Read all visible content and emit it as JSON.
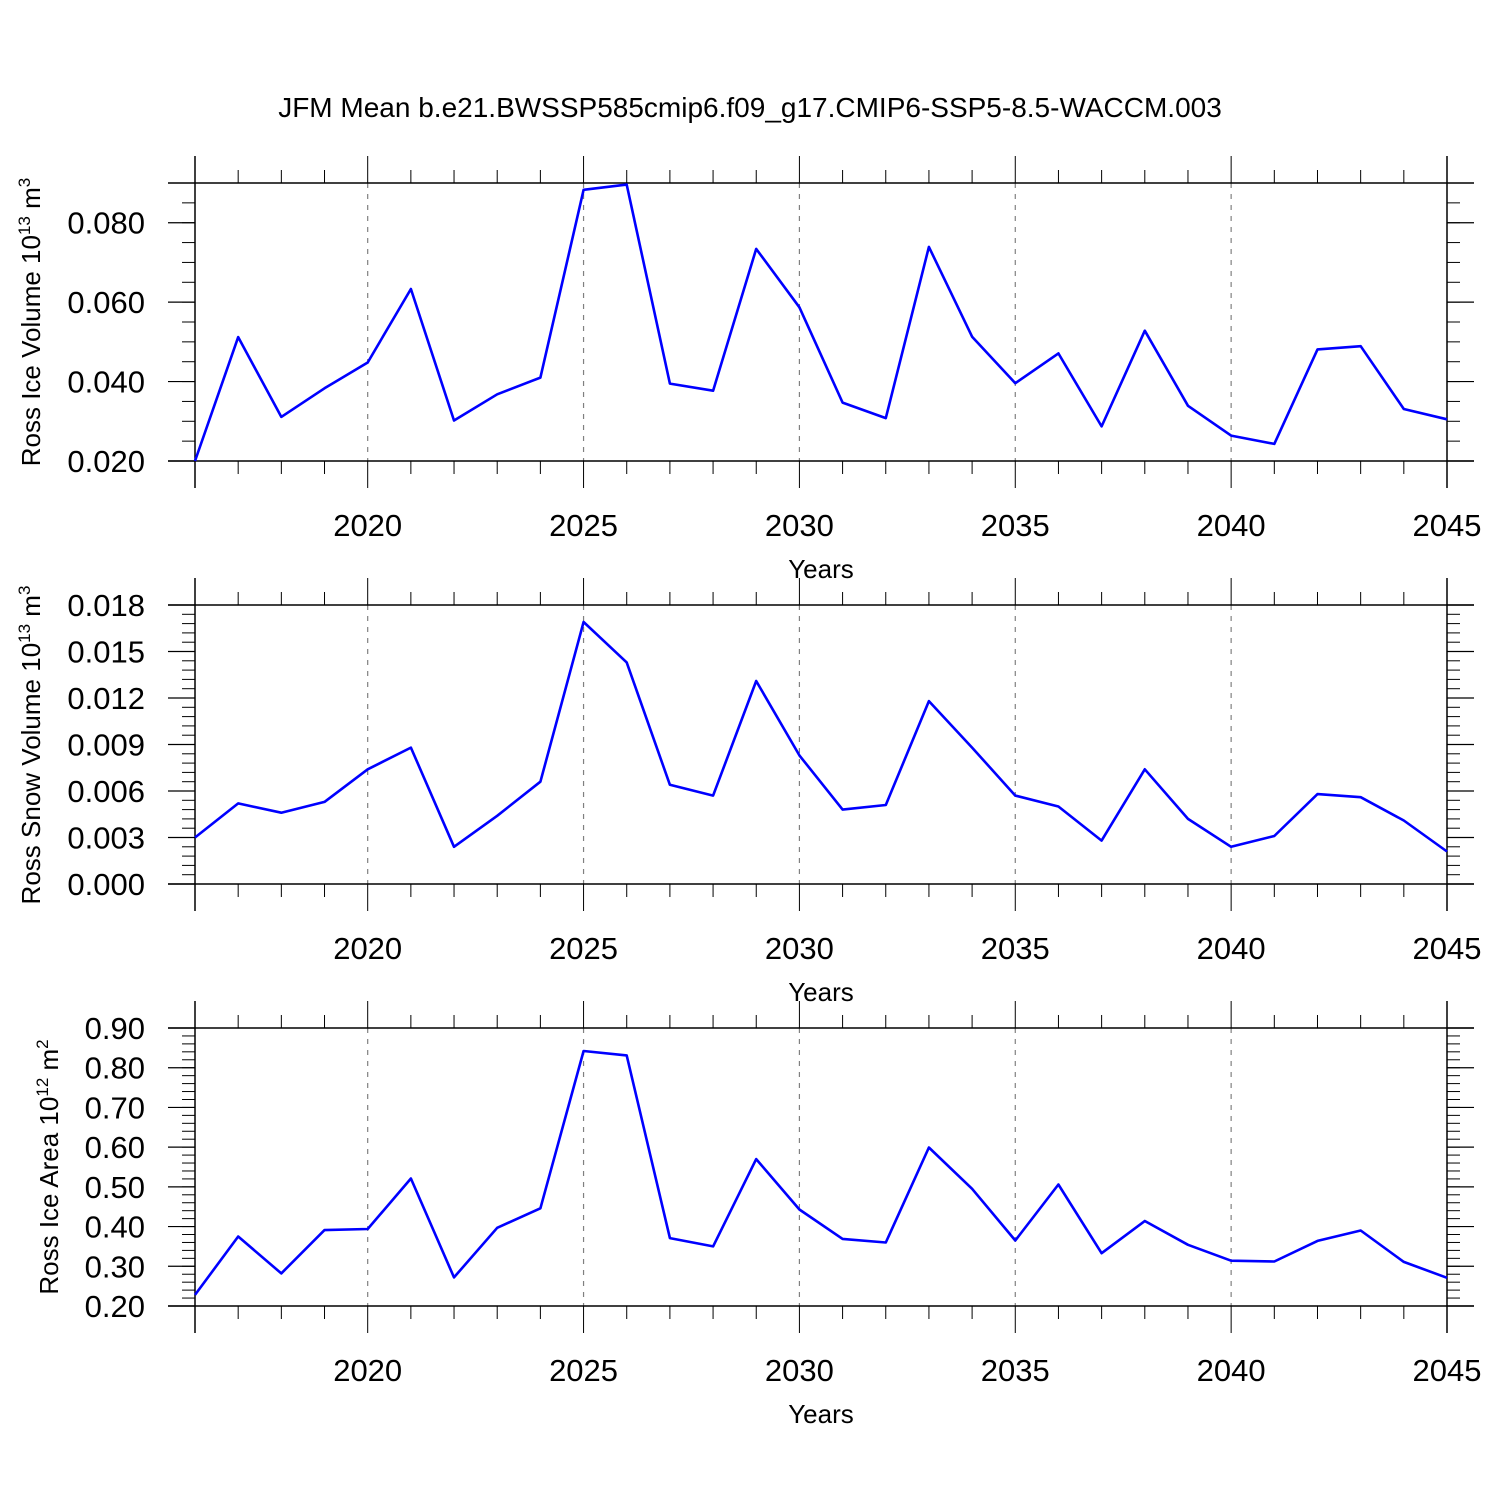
{
  "title": "JFM Mean b.e21.BWSSP585cmip6.f09_g17.CMIP6-SSP5-8.5-WACCM.003",
  "colors": {
    "line": "#0000ff",
    "axis": "#000000",
    "grid": "#808080"
  },
  "chart_data": [
    {
      "type": "line",
      "ylabel": "Ross Ice Volume",
      "ylabel_exp": "13",
      "ylabel_unit": "m",
      "ylabel_unit_exp": "3",
      "xlabel": "Years",
      "xlim": [
        2016,
        2045
      ],
      "ylim": [
        0.02,
        0.09
      ],
      "yticks": [
        0.02,
        0.04,
        0.06,
        0.08
      ],
      "ytick_labels": [
        "0.020",
        "0.040",
        "0.060",
        "0.080"
      ],
      "xticks": [
        2020,
        2025,
        2030,
        2035,
        2040,
        2045
      ],
      "xtick_labels": [
        "2020",
        "2025",
        "2030",
        "2035",
        "2040",
        "2045"
      ],
      "grid": "vertical dashed at major x ticks",
      "series": [
        {
          "x": [
            2016,
            2017,
            2018,
            2019,
            2020,
            2021,
            2022,
            2023,
            2024,
            2025,
            2026,
            2027,
            2028,
            2029,
            2030,
            2031,
            2032,
            2033,
            2034,
            2035,
            2036,
            2037,
            2038,
            2039,
            2040,
            2041,
            2042,
            2043,
            2044,
            2045
          ],
          "values": [
            0.02,
            0.0512,
            0.0311,
            0.0383,
            0.0448,
            0.0633,
            0.0302,
            0.0368,
            0.041,
            0.0883,
            0.0896,
            0.0395,
            0.0377,
            0.0734,
            0.0587,
            0.0347,
            0.0308,
            0.0739,
            0.0513,
            0.0396,
            0.0471,
            0.0287,
            0.0528,
            0.0339,
            0.0264,
            0.0243,
            0.0481,
            0.0489,
            0.0331,
            0.0305
          ]
        }
      ]
    },
    {
      "type": "line",
      "ylabel": "Ross Snow Volume",
      "ylabel_exp": "13",
      "ylabel_unit": "m",
      "ylabel_unit_exp": "3",
      "xlabel": "Years",
      "xlim": [
        2016,
        2045
      ],
      "ylim": [
        0.0,
        0.018
      ],
      "yticks": [
        0.0,
        0.003,
        0.006,
        0.009,
        0.012,
        0.015,
        0.018
      ],
      "ytick_labels": [
        "0.000",
        "0.003",
        "0.006",
        "0.009",
        "0.012",
        "0.015",
        "0.018"
      ],
      "xticks": [
        2020,
        2025,
        2030,
        2035,
        2040,
        2045
      ],
      "xtick_labels": [
        "2020",
        "2025",
        "2030",
        "2035",
        "2040",
        "2045"
      ],
      "grid": "vertical dashed at major x ticks",
      "series": [
        {
          "x": [
            2016,
            2017,
            2018,
            2019,
            2020,
            2021,
            2022,
            2023,
            2024,
            2025,
            2026,
            2027,
            2028,
            2029,
            2030,
            2031,
            2032,
            2033,
            2034,
            2035,
            2036,
            2037,
            2038,
            2039,
            2040,
            2041,
            2042,
            2043,
            2044,
            2045
          ],
          "values": [
            0.003,
            0.0052,
            0.0046,
            0.0053,
            0.0074,
            0.0088,
            0.0024,
            0.0044,
            0.0066,
            0.0169,
            0.0143,
            0.0064,
            0.0057,
            0.0131,
            0.0083,
            0.0048,
            0.0051,
            0.0118,
            0.0088,
            0.0057,
            0.005,
            0.0028,
            0.0074,
            0.0042,
            0.0024,
            0.0031,
            0.0058,
            0.0056,
            0.0041,
            0.0021
          ]
        }
      ]
    },
    {
      "type": "line",
      "ylabel": "Ross Ice Area",
      "ylabel_exp": "12",
      "ylabel_unit": "m",
      "ylabel_unit_exp": "2",
      "xlabel": "Years",
      "xlim": [
        2016,
        2045
      ],
      "ylim": [
        0.2,
        0.9
      ],
      "yticks": [
        0.2,
        0.3,
        0.4,
        0.5,
        0.6,
        0.7,
        0.8,
        0.9
      ],
      "ytick_labels": [
        "0.20",
        "0.30",
        "0.40",
        "0.50",
        "0.60",
        "0.70",
        "0.80",
        "0.90"
      ],
      "xticks": [
        2020,
        2025,
        2030,
        2035,
        2040,
        2045
      ],
      "xtick_labels": [
        "2020",
        "2025",
        "2030",
        "2035",
        "2040",
        "2045"
      ],
      "grid": "vertical dashed at major x ticks",
      "series": [
        {
          "x": [
            2016,
            2017,
            2018,
            2019,
            2020,
            2021,
            2022,
            2023,
            2024,
            2025,
            2026,
            2027,
            2028,
            2029,
            2030,
            2031,
            2032,
            2033,
            2034,
            2035,
            2036,
            2037,
            2038,
            2039,
            2040,
            2041,
            2042,
            2043,
            2044,
            2045
          ],
          "values": [
            0.228,
            0.375,
            0.282,
            0.391,
            0.394,
            0.521,
            0.272,
            0.397,
            0.446,
            0.842,
            0.831,
            0.371,
            0.35,
            0.57,
            0.443,
            0.369,
            0.36,
            0.599,
            0.495,
            0.365,
            0.506,
            0.333,
            0.414,
            0.354,
            0.314,
            0.312,
            0.364,
            0.39,
            0.311,
            0.271
          ]
        }
      ]
    }
  ]
}
